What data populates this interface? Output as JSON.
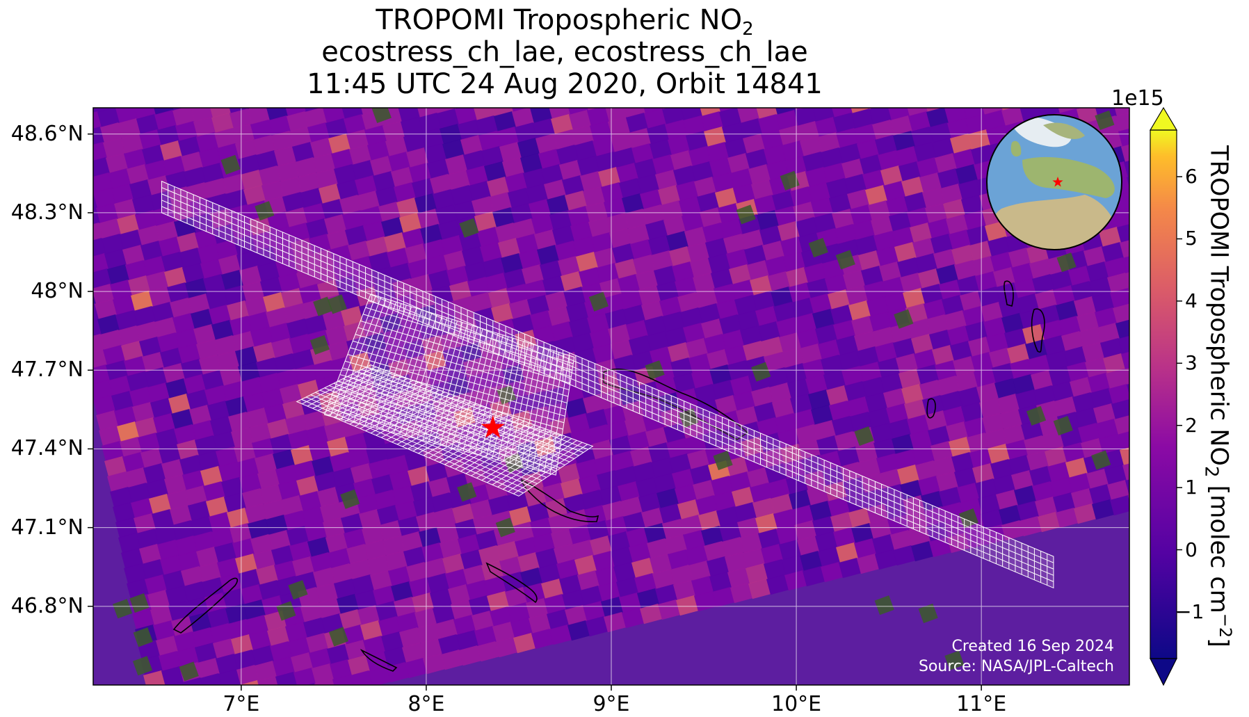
{
  "title": {
    "line1_prefix": "TROPOMI Tropospheric NO",
    "line1_sub": "2",
    "line2": "ecostress_ch_lae, ecostress_ch_lae",
    "line3": "11:45 UTC 24 Aug 2020, Orbit 14841"
  },
  "map": {
    "lat_ticks": [
      "48.6°N",
      "48.3°N",
      "48°N",
      "47.7°N",
      "47.4°N",
      "47.1°N",
      "46.8°N"
    ],
    "lon_ticks": [
      "7°E",
      "8°E",
      "9°E",
      "10°E",
      "11°E"
    ],
    "lat_values": [
      48.6,
      48.3,
      48.0,
      47.7,
      47.4,
      47.1,
      46.8
    ],
    "lon_values": [
      7,
      8,
      9,
      10,
      11
    ],
    "extent": {
      "lon": [
        6.2,
        11.8
      ],
      "lat": [
        46.5,
        48.7
      ]
    },
    "target_marker": {
      "lon": 8.36,
      "lat": 47.48,
      "symbol": "star",
      "color": "#ff0000"
    },
    "inset": "globe-locator"
  },
  "colorbar": {
    "scale_label": "1e15",
    "ticks": [
      "6",
      "5",
      "4",
      "3",
      "2",
      "1",
      "0",
      "−1"
    ],
    "tick_values": [
      6,
      5,
      4,
      3,
      2,
      1,
      0,
      -1
    ],
    "range": [
      -1.75,
      6.75
    ],
    "colormap": "plasma",
    "label_prefix": "TROPOMI Tropospheric NO",
    "label_sub": "2",
    "label_mid": " [molec cm",
    "label_sup": "−2",
    "label_suffix": "]"
  },
  "credits": {
    "created": "Created 16 Sep 2024",
    "source": "Source: NASA/JPL-Caltech"
  },
  "colors": {
    "background_low": "#5d1ea0",
    "target_star": "#ff0000",
    "grid": "#ffffff"
  }
}
